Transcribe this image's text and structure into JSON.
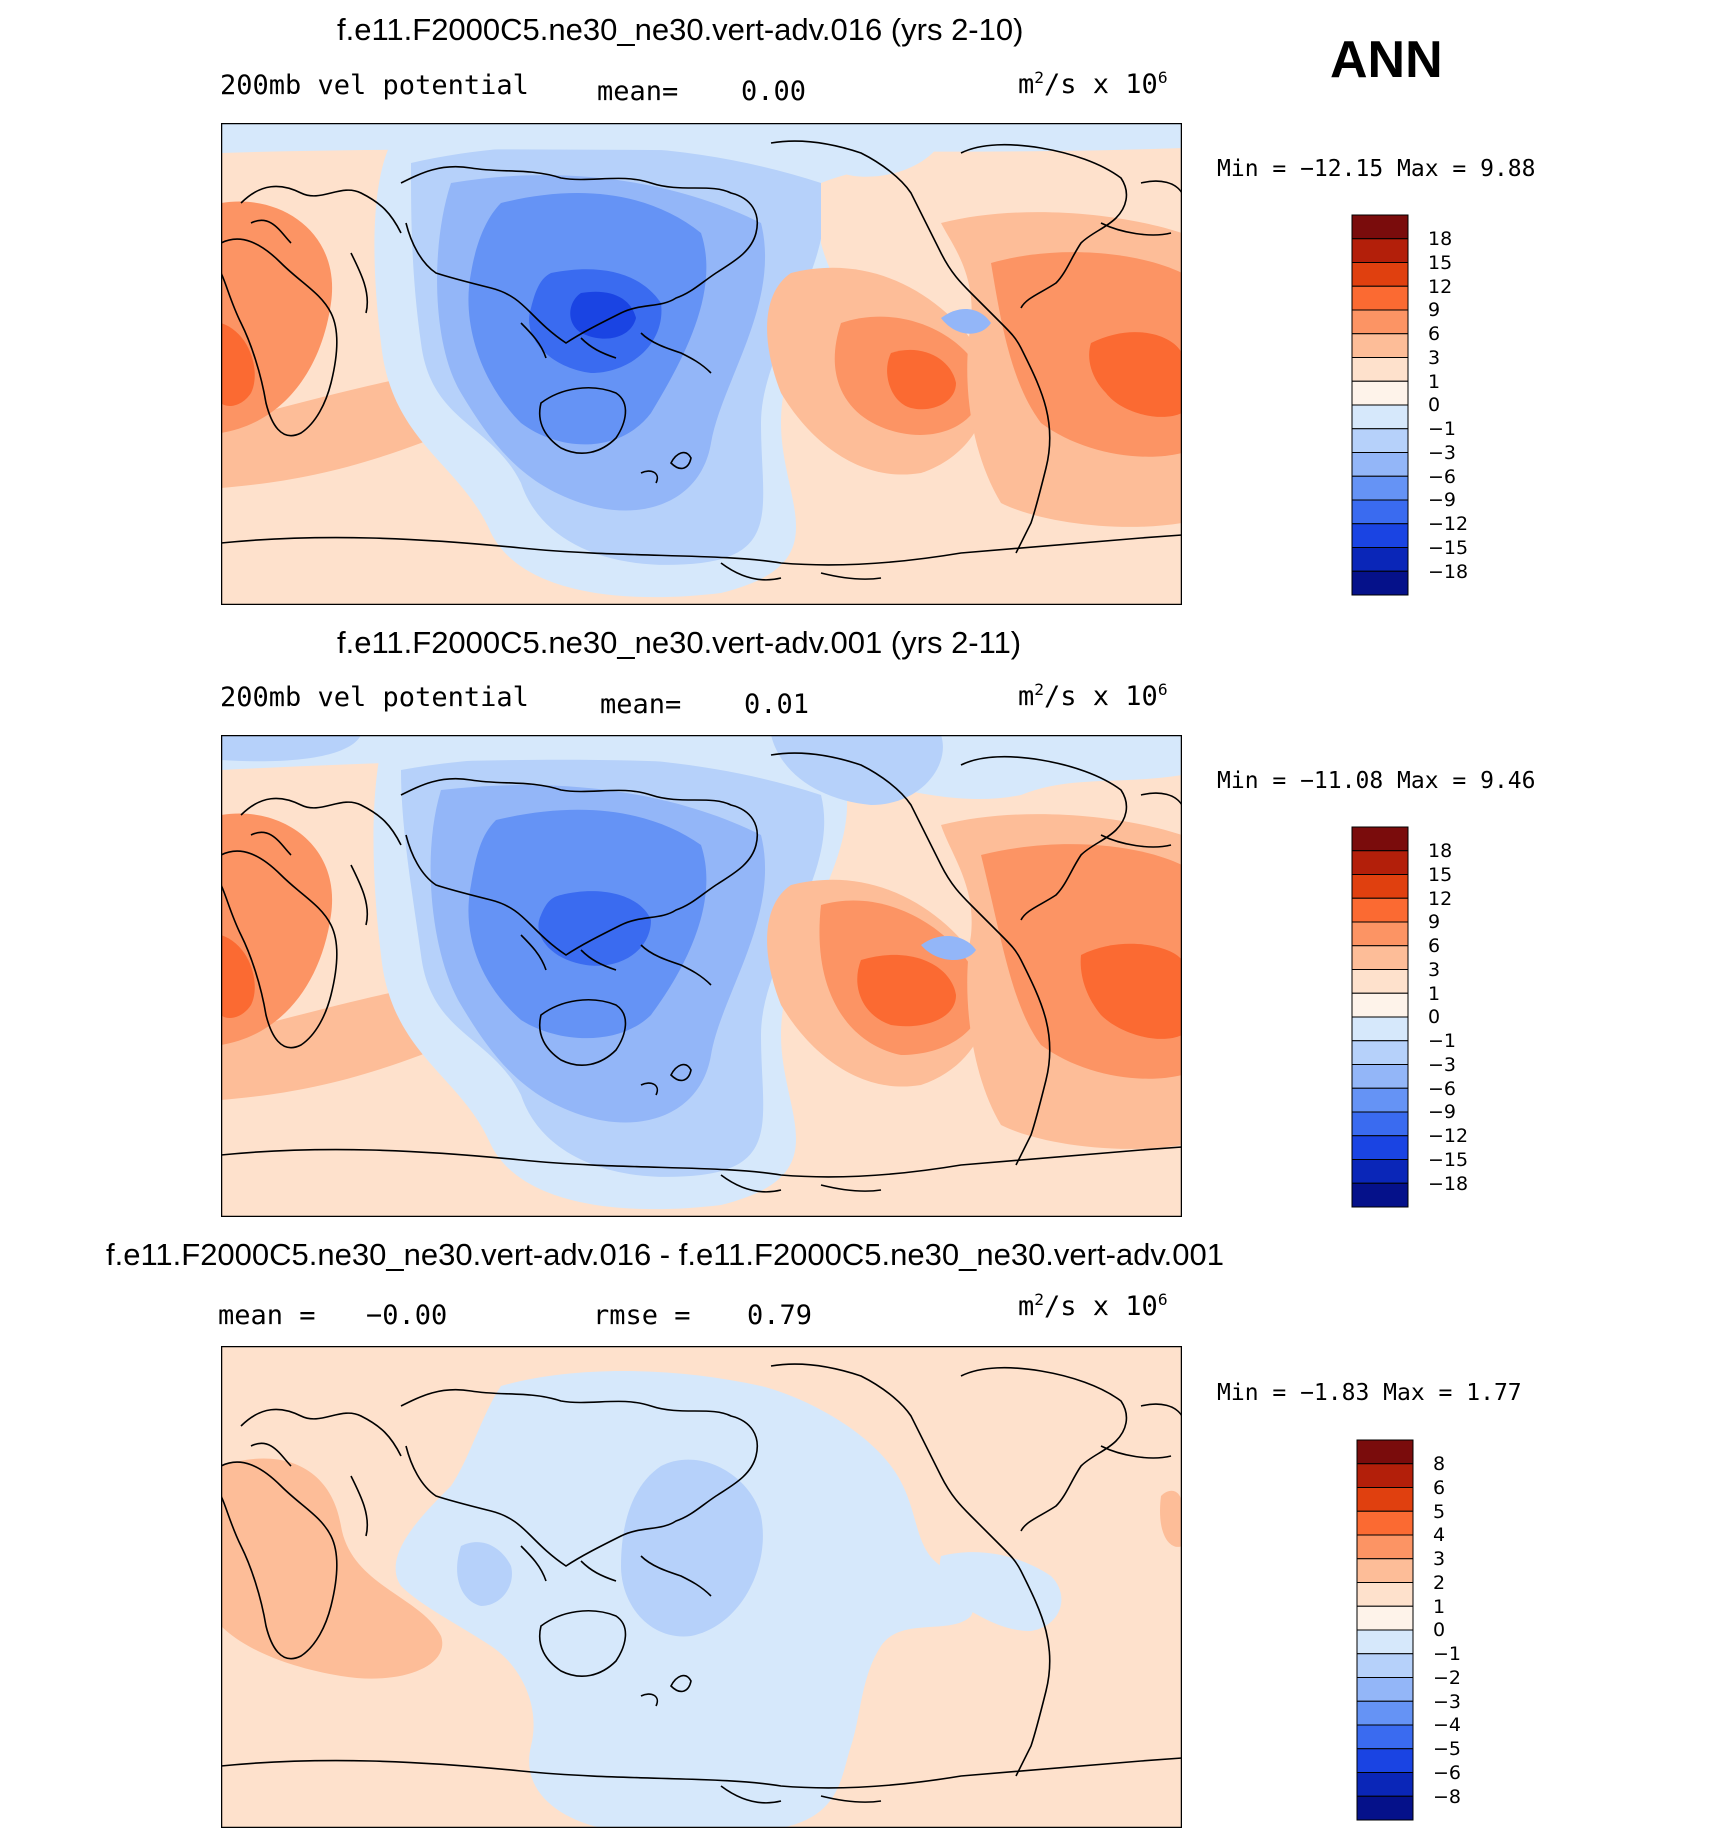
{
  "season": "ANN",
  "units": {
    "base": "m",
    "sup1": "2",
    "mid": "/s x 10",
    "sup2": "6"
  },
  "chart_data": [
    {
      "type": "heatmap",
      "title": "f.e11.F2000C5.ne30_ne30.vert-adv.016 (yrs 2-10)",
      "field_label": "200mb vel potential",
      "mean_label": "mean=",
      "mean_value": "0.00",
      "stats_text": "Min = −12.15 Max =   9.88",
      "min": -12.15,
      "max": 9.88,
      "colorbar_levels": [
        "18",
        "15",
        "12",
        "9",
        "6",
        "3",
        "1",
        "0",
        "−1",
        "−3",
        "−6",
        "−9",
        "−12",
        "−15",
        "−18"
      ],
      "colorbar_colors": [
        "#7a0c0c",
        "#b31f0a",
        "#e0400f",
        "#fb6a32",
        "#fc9464",
        "#fdbd98",
        "#fee1cc",
        "#fef3ea",
        "#d6e8fb",
        "#b6d1fa",
        "#93b6f8",
        "#6593f5",
        "#3a6bf0",
        "#1a44e3",
        "#0a26b8",
        "#05118a"
      ]
    },
    {
      "type": "heatmap",
      "title": "f.e11.F2000C5.ne30_ne30.vert-adv.001 (yrs 2-11)",
      "field_label": "200mb vel potential",
      "mean_label": "mean=",
      "mean_value": "0.01",
      "stats_text": "Min = −11.08 Max =   9.46",
      "min": -11.08,
      "max": 9.46,
      "colorbar_levels": [
        "18",
        "15",
        "12",
        "9",
        "6",
        "3",
        "1",
        "0",
        "−1",
        "−3",
        "−6",
        "−9",
        "−12",
        "−15",
        "−18"
      ],
      "colorbar_colors": [
        "#7a0c0c",
        "#b31f0a",
        "#e0400f",
        "#fb6a32",
        "#fc9464",
        "#fdbd98",
        "#fee1cc",
        "#fef3ea",
        "#d6e8fb",
        "#b6d1fa",
        "#93b6f8",
        "#6593f5",
        "#3a6bf0",
        "#1a44e3",
        "#0a26b8",
        "#05118a"
      ]
    },
    {
      "type": "heatmap",
      "title": "f.e11.F2000C5.ne30_ne30.vert-adv.016 - f.e11.F2000C5.ne30_ne30.vert-adv.001",
      "mean_label": "mean =",
      "mean_value": "−0.00",
      "rmse_label": "rmse =",
      "rmse_value": "0.79",
      "stats_text": "Min =  −1.83 Max =   1.77",
      "min": -1.83,
      "max": 1.77,
      "colorbar_levels": [
        "8",
        "6",
        "5",
        "4",
        "3",
        "2",
        "1",
        "0",
        "−1",
        "−2",
        "−3",
        "−4",
        "−5",
        "−6",
        "−8"
      ],
      "colorbar_colors": [
        "#7a0c0c",
        "#b31f0a",
        "#e0400f",
        "#fb6a32",
        "#fc9464",
        "#fdbd98",
        "#fee1cc",
        "#fef3ea",
        "#d6e8fb",
        "#b6d1fa",
        "#93b6f8",
        "#6593f5",
        "#3a6bf0",
        "#1a44e3",
        "#0a26b8",
        "#05118a"
      ]
    }
  ]
}
